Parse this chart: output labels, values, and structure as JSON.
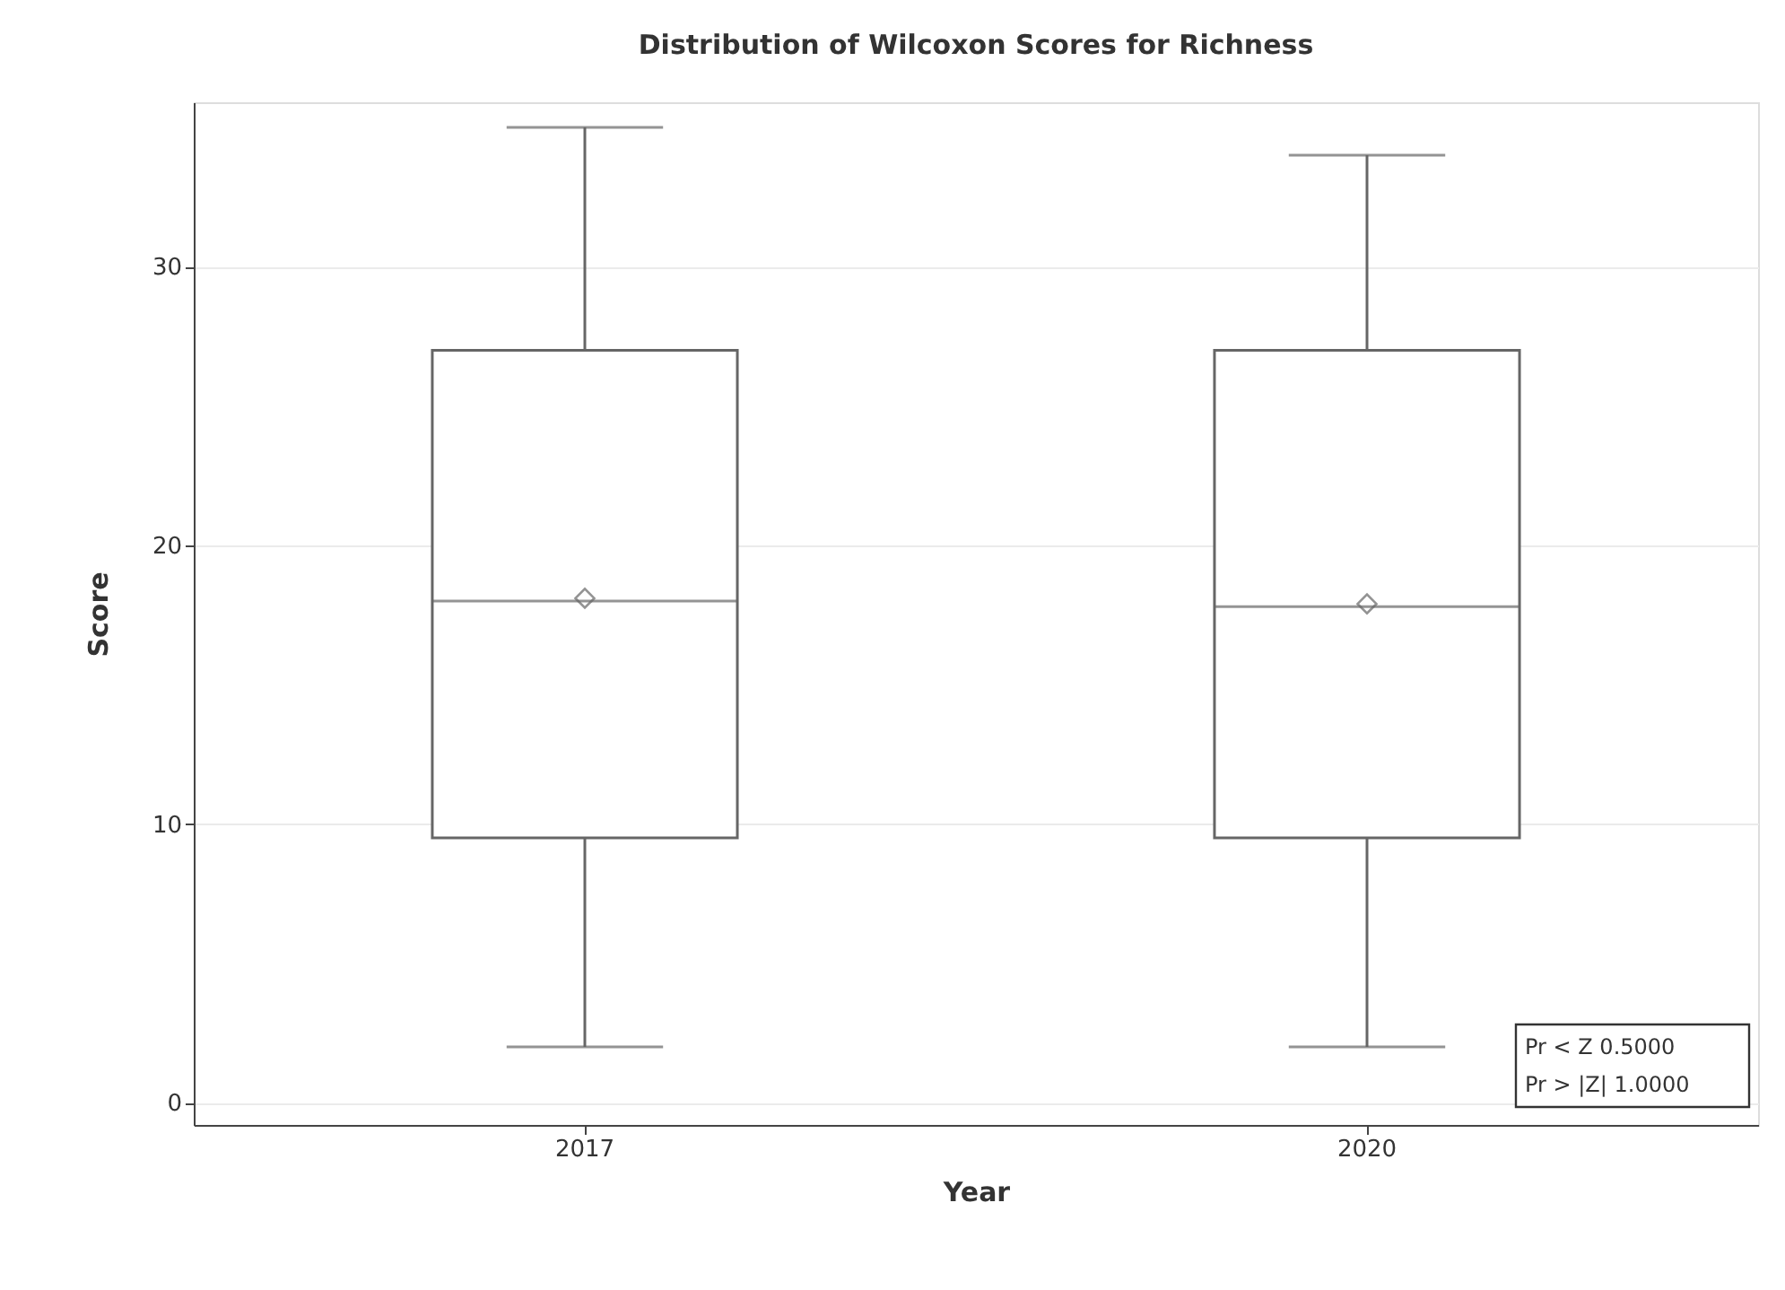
{
  "chart_data": {
    "type": "box",
    "title": "Distribution of Wilcoxon Scores for Richness",
    "xlabel": "Year",
    "ylabel": "Score",
    "categories": [
      "2017",
      "2020"
    ],
    "series": [
      {
        "color": "#666666",
        "boxes": [
          {
            "low": 2,
            "q1": 9.5,
            "median": 18,
            "q3": 27,
            "high": 35,
            "mean": 18.1
          },
          {
            "low": 2,
            "q1": 9.5,
            "median": 17.8,
            "q3": 27,
            "high": 34,
            "mean": 17.9
          }
        ]
      }
    ],
    "ylim": [
      -0.8,
      35.9
    ],
    "yticks": [
      0,
      10,
      20,
      30
    ],
    "grid": "y",
    "marker": "diamond",
    "annotations": [
      "Pr < Z    0.5000",
      "Pr > |Z|  1.0000"
    ]
  }
}
